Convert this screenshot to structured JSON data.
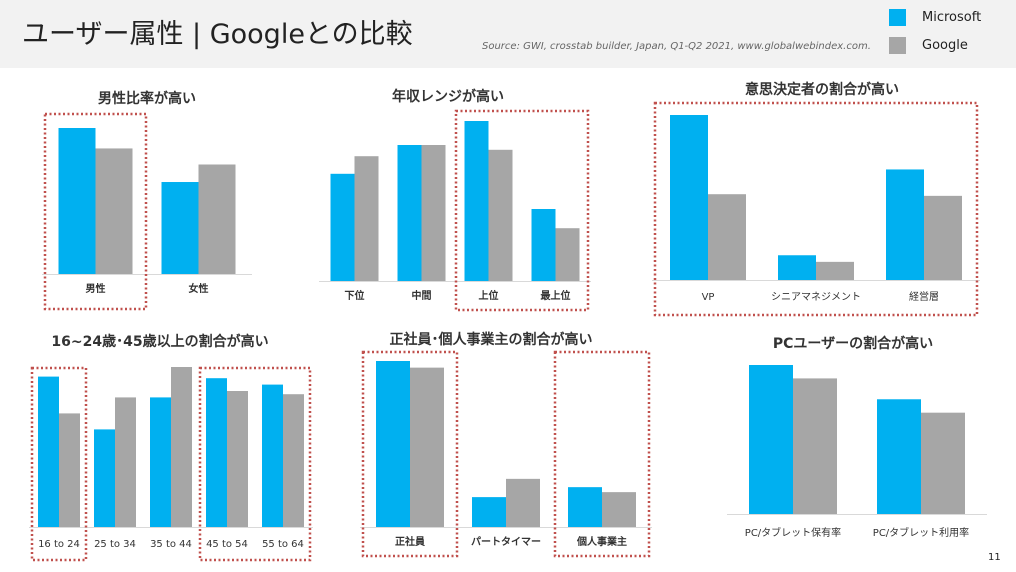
{
  "header": {
    "title": "ユーザー属性 | Googleとの比較",
    "source": "Source: GWI, crosstab builder, Japan, Q1-Q2 2021, www.globalwebindex.com."
  },
  "legend": {
    "items": [
      {
        "label": "Microsoft",
        "color": "#00b0f0"
      },
      {
        "label": "Google",
        "color": "#a6a6a6"
      }
    ]
  },
  "page_number": "11",
  "chart_data": [
    {
      "type": "bar",
      "title": "男性比率が高い",
      "categories": [
        "男性",
        "女性"
      ],
      "series": [
        {
          "name": "Microsoft",
          "values": [
            100,
            63
          ]
        },
        {
          "name": "Google",
          "values": [
            86,
            75
          ]
        }
      ],
      "ylim": [
        0,
        100
      ],
      "label_weight": "bold",
      "highlight": [
        [
          0,
          0
        ]
      ]
    },
    {
      "type": "bar",
      "title": "年収レンジが高い",
      "categories": [
        "下位",
        "中間",
        "上位",
        "最上位"
      ],
      "series": [
        {
          "name": "Microsoft",
          "values": [
            67,
            85,
            100,
            45
          ]
        },
        {
          "name": "Google",
          "values": [
            78,
            85,
            82,
            33
          ]
        }
      ],
      "ylim": [
        0,
        100
      ],
      "label_weight": "bold",
      "highlight": [
        [
          2,
          3
        ]
      ]
    },
    {
      "type": "bar",
      "title": "意思決定者の割合が高い",
      "categories": [
        "VP",
        "シニアマネジメント",
        "経営層"
      ],
      "series": [
        {
          "name": "Microsoft",
          "values": [
            100,
            15,
            67
          ]
        },
        {
          "name": "Google",
          "values": [
            52,
            11,
            51
          ]
        }
      ],
      "ylim": [
        0,
        100
      ],
      "label_weight": "normal",
      "highlight": [
        [
          0,
          2
        ]
      ]
    },
    {
      "type": "bar",
      "title": "16~24歳･45歳以上の割合が高い",
      "categories": [
        "16 to 24",
        "25 to 34",
        "35 to 44",
        "45 to 54",
        "55 to 64"
      ],
      "series": [
        {
          "name": "Microsoft",
          "values": [
            94,
            61,
            81,
            93,
            89
          ]
        },
        {
          "name": "Google",
          "values": [
            71,
            81,
            100,
            85,
            83
          ]
        }
      ],
      "ylim": [
        0,
        100
      ],
      "label_weight": "normal",
      "highlight": [
        [
          0,
          0
        ],
        [
          3,
          4
        ]
      ]
    },
    {
      "type": "bar",
      "title": "正社員･個人事業主の割合が高い",
      "categories": [
        "正社員",
        "パートタイマー",
        "個人事業主"
      ],
      "series": [
        {
          "name": "Microsoft",
          "values": [
            100,
            18,
            24
          ]
        },
        {
          "name": "Google",
          "values": [
            96,
            29,
            21
          ]
        }
      ],
      "ylim": [
        0,
        100
      ],
      "label_weight": "bold",
      "highlight": [
        [
          0,
          0
        ],
        [
          2,
          2
        ]
      ]
    },
    {
      "type": "bar",
      "title": "PCユーザーの割合が高い",
      "categories": [
        "PC/タブレット保有率",
        "PC/タブレット利用率"
      ],
      "series": [
        {
          "name": "Microsoft",
          "values": [
            100,
            77
          ]
        },
        {
          "name": "Google",
          "values": [
            91,
            68
          ]
        }
      ],
      "ylim": [
        0,
        100
      ],
      "label_weight": "normal",
      "highlight": []
    }
  ]
}
